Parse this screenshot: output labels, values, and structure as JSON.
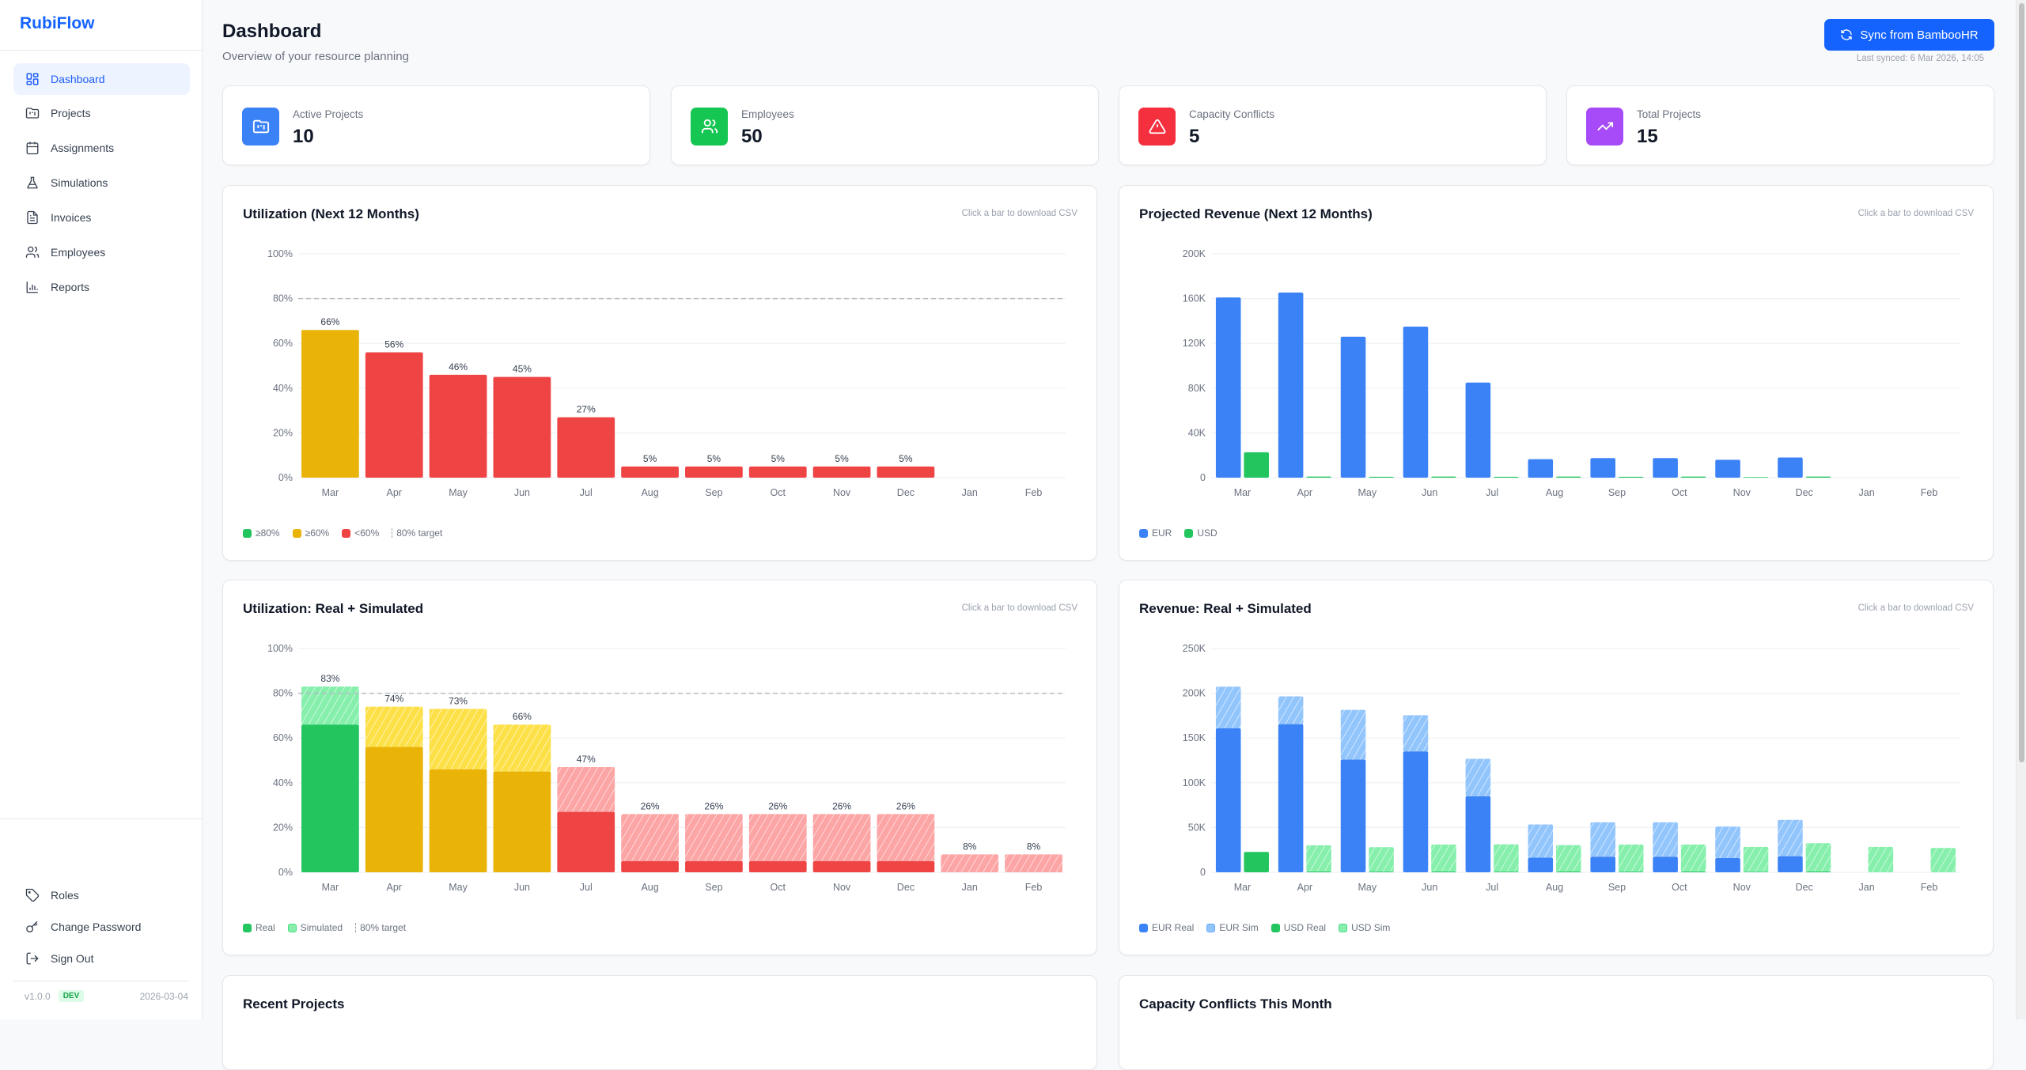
{
  "app": {
    "name": "RubiFlow",
    "brand_color": "#1463ff"
  },
  "sidebar": {
    "items": [
      {
        "label": "Dashboard",
        "icon": "dashboard-grid-icon",
        "active": true
      },
      {
        "label": "Projects",
        "icon": "folder-kanban-icon"
      },
      {
        "label": "Assignments",
        "icon": "calendar-icon"
      },
      {
        "label": "Simulations",
        "icon": "flask-icon"
      },
      {
        "label": "Invoices",
        "icon": "file-text-icon"
      },
      {
        "label": "Employees",
        "icon": "users-icon"
      },
      {
        "label": "Reports",
        "icon": "bar-chart-icon"
      }
    ],
    "bottom_items": [
      {
        "label": "Roles",
        "icon": "tag-icon"
      },
      {
        "label": "Change Password",
        "icon": "key-icon"
      },
      {
        "label": "Sign Out",
        "icon": "log-out-icon"
      }
    ],
    "footer": {
      "version": "v1.0.0",
      "env_badge": "DEV",
      "date": "2026-03-04"
    }
  },
  "header": {
    "title": "Dashboard",
    "subtitle": "Overview of your resource planning",
    "sync_button": "Sync from BambooHR",
    "last_synced": "Last synced: 6 Mar 2026, 14:05"
  },
  "stats": [
    {
      "label": "Active Projects",
      "value": "10",
      "color": "#3b82f6",
      "icon": "folder-kanban-icon"
    },
    {
      "label": "Employees",
      "value": "50",
      "color": "#16c653",
      "icon": "users-icon"
    },
    {
      "label": "Capacity Conflicts",
      "value": "5",
      "color": "#f5303e",
      "icon": "alert-triangle-icon"
    },
    {
      "label": "Total Projects",
      "value": "15",
      "color": "#a64bf7",
      "icon": "trending-up-icon"
    }
  ],
  "chart_hint": "Click a bar to download CSV",
  "bottom_cards": {
    "recent_projects": "Recent Projects",
    "capacity_conflicts": "Capacity Conflicts This Month"
  },
  "chart_data": [
    {
      "type": "bar",
      "title": "Utilization (Next 12 Months)",
      "categories": [
        "Mar",
        "Apr",
        "May",
        "Jun",
        "Jul",
        "Aug",
        "Sep",
        "Oct",
        "Nov",
        "Dec",
        "Jan",
        "Feb"
      ],
      "values": [
        66,
        56,
        46,
        45,
        27,
        5,
        5,
        5,
        5,
        5,
        0,
        0
      ],
      "data_labels": [
        "66%",
        "56%",
        "46%",
        "45%",
        "27%",
        "5%",
        "5%",
        "5%",
        "5%",
        "5%",
        "",
        ""
      ],
      "ylim": [
        0,
        100
      ],
      "yticks": [
        0,
        20,
        40,
        60,
        80,
        100
      ],
      "ytick_labels": [
        "0%",
        "20%",
        "40%",
        "60%",
        "80%",
        "100%"
      ],
      "target": 80,
      "grid": true,
      "colors": {
        "high": "#22c55e",
        "mid": "#eab308",
        "low": "#ef4444"
      },
      "legend": [
        "≥80%",
        "≥60%",
        "<60%",
        "80% target"
      ],
      "legend_placement": "bottom-left"
    },
    {
      "type": "bar",
      "title": "Projected Revenue (Next 12 Months)",
      "categories": [
        "Mar",
        "Apr",
        "May",
        "Jun",
        "Jul",
        "Aug",
        "Sep",
        "Oct",
        "Nov",
        "Dec",
        "Jan",
        "Feb"
      ],
      "series": [
        {
          "name": "EUR",
          "color": "#3b82f6",
          "values": [
            161000,
            165500,
            126000,
            135000,
            85000,
            16500,
            17500,
            17500,
            16000,
            18000,
            0,
            0
          ]
        },
        {
          "name": "USD",
          "color": "#22c55e",
          "values": [
            22700,
            1000,
            800,
            1000,
            800,
            1000,
            800,
            1000,
            500,
            1000,
            0,
            0
          ]
        }
      ],
      "ylim": [
        0,
        200000
      ],
      "yticks": [
        0,
        40000,
        80000,
        120000,
        160000,
        200000
      ],
      "ytick_labels": [
        "0",
        "40K",
        "80K",
        "120K",
        "160K",
        "200K"
      ],
      "grid": true,
      "legend_placement": "bottom-left"
    },
    {
      "type": "bar",
      "stacked": true,
      "title": "Utilization: Real + Simulated",
      "categories": [
        "Mar",
        "Apr",
        "May",
        "Jun",
        "Jul",
        "Aug",
        "Sep",
        "Oct",
        "Nov",
        "Dec",
        "Jan",
        "Feb"
      ],
      "series": [
        {
          "name": "Real",
          "values": [
            66,
            56,
            46,
            45,
            27,
            5,
            5,
            5,
            5,
            5,
            0,
            0
          ]
        },
        {
          "name": "Simulated",
          "values": [
            17,
            18,
            27,
            21,
            20,
            21,
            21,
            21,
            21,
            21,
            8,
            8
          ]
        }
      ],
      "data_labels": [
        "83%",
        "74%",
        "73%",
        "66%",
        "47%",
        "26%",
        "26%",
        "26%",
        "26%",
        "26%",
        "8%",
        "8%"
      ],
      "ylim": [
        0,
        100
      ],
      "yticks": [
        0,
        20,
        40,
        60,
        80,
        100
      ],
      "ytick_labels": [
        "0%",
        "20%",
        "40%",
        "60%",
        "80%",
        "100%"
      ],
      "target": 80,
      "grid": true,
      "colors": {
        "high": "#22c55e",
        "mid": "#eab308",
        "low": "#ef4444",
        "high_sim": "#86efac",
        "mid_sim": "#fde047",
        "low_sim": "#fca5a5"
      },
      "legend": [
        "Real",
        "Simulated",
        "80% target"
      ],
      "legend_placement": "bottom-left"
    },
    {
      "type": "bar",
      "stacked": true,
      "title": "Revenue: Real + Simulated",
      "categories": [
        "Mar",
        "Apr",
        "May",
        "Jun",
        "Jul",
        "Aug",
        "Sep",
        "Oct",
        "Nov",
        "Dec",
        "Jan",
        "Feb"
      ],
      "series": [
        {
          "name": "EUR Real",
          "stack": "EUR",
          "color": "#3b82f6",
          "values": [
            161000,
            165500,
            126000,
            135000,
            85000,
            16500,
            17500,
            17500,
            16000,
            18000,
            0,
            0
          ]
        },
        {
          "name": "EUR Sim",
          "stack": "EUR",
          "color": "#93c5fd",
          "hatched": true,
          "values": [
            46400,
            31000,
            55400,
            40500,
            41800,
            37000,
            38400,
            38400,
            35100,
            40500,
            0,
            0
          ]
        },
        {
          "name": "USD Real",
          "stack": "USD",
          "color": "#22c55e",
          "values": [
            22700,
            1000,
            800,
            1000,
            800,
            1000,
            800,
            1000,
            500,
            1000,
            0,
            0
          ]
        },
        {
          "name": "USD Sim",
          "stack": "USD",
          "color": "#86efac",
          "hatched": true,
          "values": [
            0,
            29100,
            27200,
            30000,
            30500,
            29400,
            30200,
            30000,
            27900,
            31500,
            28400,
            27200
          ]
        }
      ],
      "ylim": [
        0,
        250000
      ],
      "yticks": [
        0,
        50000,
        100000,
        150000,
        200000,
        250000
      ],
      "ytick_labels": [
        "0",
        "50K",
        "100K",
        "150K",
        "200K",
        "250K"
      ],
      "grid": true,
      "legend_placement": "bottom-left"
    }
  ]
}
